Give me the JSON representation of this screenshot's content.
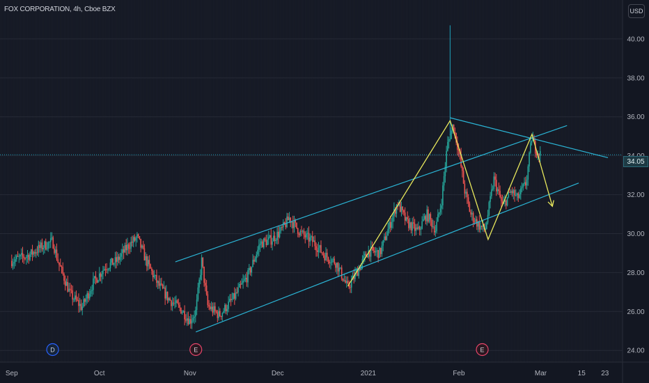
{
  "header": {
    "symbol_title": "FOX CORPORATION, 4h, Cboe BZX",
    "currency_label": "USD"
  },
  "last_price_label": "34.05",
  "event_markers": [
    {
      "label": "D",
      "date": "2020-09-15"
    },
    {
      "label": "E",
      "date": "2020-11-03"
    },
    {
      "label": "E",
      "date": "2021-02-09"
    }
  ],
  "colors": {
    "background": "#131722",
    "up_candle": "#26a69a",
    "down_candle": "#ef5350",
    "channel_lines": "#2bb5d6",
    "pattern_lines": "#e8e85c",
    "price_line": "#22a7c2"
  },
  "chart_data": {
    "type": "candlestick",
    "title": "FOX CORPORATION, 4h, Cboe BZX",
    "xlabel": "",
    "ylabel": "USD",
    "x_range": [
      "2020-08-28",
      "2021-03-29"
    ],
    "ylim": [
      23.4,
      42.0
    ],
    "x_tick_labels": [
      {
        "label": "Sep",
        "date": "2020-09-01"
      },
      {
        "label": "Oct",
        "date": "2020-10-01"
      },
      {
        "label": "Nov",
        "date": "2020-11-01"
      },
      {
        "label": "Dec",
        "date": "2020-12-01"
      },
      {
        "label": "2021",
        "date": "2021-01-01"
      },
      {
        "label": "Feb",
        "date": "2021-02-01"
      },
      {
        "label": "Mar",
        "date": "2021-03-01"
      },
      {
        "label": "15",
        "date": "2021-03-15"
      },
      {
        "label": "23",
        "date": "2021-03-23"
      }
    ],
    "y_tick_labels": [
      "24.00",
      "26.00",
      "28.00",
      "30.00",
      "32.00",
      "34.00",
      "36.00",
      "38.00",
      "40.00"
    ],
    "last_price": 34.05,
    "price_path": [
      [
        "2020-09-01",
        28.6
      ],
      [
        "2020-09-07",
        28.9
      ],
      [
        "2020-09-11",
        29.3
      ],
      [
        "2020-09-15",
        29.6
      ],
      [
        "2020-09-17",
        28.5
      ],
      [
        "2020-09-21",
        26.9
      ],
      [
        "2020-09-25",
        26.2
      ],
      [
        "2020-09-29",
        27.5
      ],
      [
        "2020-10-03",
        28.3
      ],
      [
        "2020-10-07",
        28.6
      ],
      [
        "2020-10-11",
        29.4
      ],
      [
        "2020-10-14",
        29.8
      ],
      [
        "2020-10-17",
        28.6
      ],
      [
        "2020-10-21",
        27.4
      ],
      [
        "2020-10-25",
        26.6
      ],
      [
        "2020-10-29",
        26.1
      ],
      [
        "2020-11-01",
        25.5
      ],
      [
        "2020-11-03",
        26.0
      ],
      [
        "2020-11-05",
        28.6
      ],
      [
        "2020-11-07",
        26.3
      ],
      [
        "2020-11-11",
        25.8
      ],
      [
        "2020-11-16",
        26.7
      ],
      [
        "2020-11-21",
        27.9
      ],
      [
        "2020-11-25",
        29.5
      ],
      [
        "2020-11-29",
        29.7
      ],
      [
        "2020-12-02",
        30.1
      ],
      [
        "2020-12-05",
        30.8
      ],
      [
        "2020-12-09",
        30.0
      ],
      [
        "2020-12-13",
        29.6
      ],
      [
        "2020-12-17",
        28.9
      ],
      [
        "2020-12-21",
        28.5
      ],
      [
        "2020-12-25",
        27.2
      ],
      [
        "2020-12-28",
        28.0
      ],
      [
        "2021-01-01",
        29.1
      ],
      [
        "2021-01-05",
        29.0
      ],
      [
        "2021-01-08",
        30.3
      ],
      [
        "2021-01-11",
        31.6
      ],
      [
        "2021-01-14",
        30.6
      ],
      [
        "2021-01-18",
        30.1
      ],
      [
        "2021-01-21",
        31.0
      ],
      [
        "2021-01-24",
        30.2
      ],
      [
        "2021-01-26",
        31.6
      ],
      [
        "2021-01-28",
        34.5
      ],
      [
        "2021-01-30",
        35.6
      ],
      [
        "2021-02-01",
        34.2
      ],
      [
        "2021-02-03",
        32.2
      ],
      [
        "2021-02-05",
        31.0
      ],
      [
        "2021-02-08",
        30.4
      ],
      [
        "2021-02-10",
        30.2
      ],
      [
        "2021-02-13",
        32.8
      ],
      [
        "2021-02-16",
        31.4
      ],
      [
        "2021-02-19",
        32.2
      ],
      [
        "2021-02-21",
        31.8
      ],
      [
        "2021-02-24",
        32.6
      ],
      [
        "2021-02-26",
        35.0
      ],
      [
        "2021-02-27",
        34.4
      ],
      [
        "2021-03-01",
        34.05
      ]
    ],
    "wick_spike": {
      "date": "2021-01-29",
      "high": 40.7
    },
    "trendlines": {
      "channel_upper": [
        [
          "2020-10-27",
          28.55
        ],
        [
          "2021-03-10",
          35.55
        ]
      ],
      "channel_lower": [
        [
          "2020-11-03",
          24.95
        ],
        [
          "2021-03-14",
          32.6
        ]
      ],
      "descending_resistance": [
        [
          "2021-01-29",
          35.95
        ],
        [
          "2021-03-24",
          33.9
        ]
      ],
      "pattern_zigzag": [
        [
          "2020-12-25",
          27.3
        ],
        [
          "2021-01-29",
          35.8
        ],
        [
          "2021-02-11",
          29.7
        ],
        [
          "2021-02-26",
          35.1
        ],
        [
          "2021-03-05",
          31.4
        ]
      ]
    }
  }
}
